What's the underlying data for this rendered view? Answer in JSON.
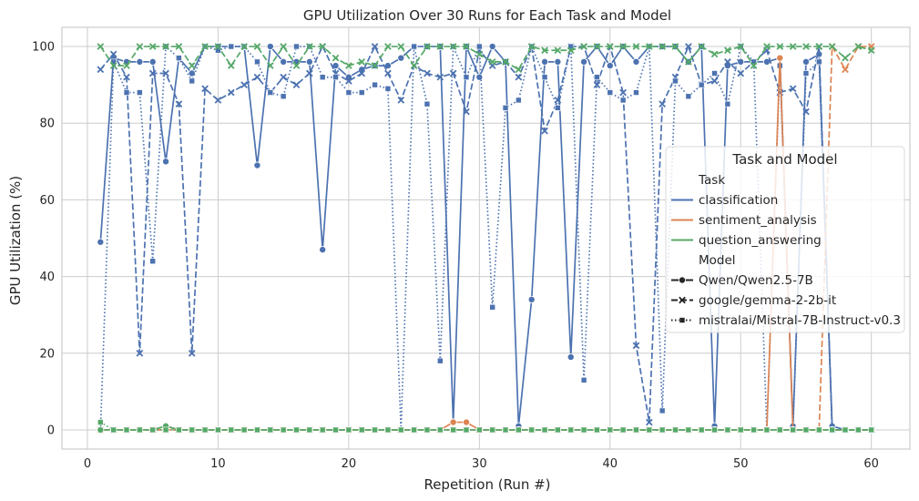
{
  "chart_data": {
    "type": "line",
    "title": "GPU Utilization Over 30 Runs for Each Task and Model",
    "xlabel": "Repetition (Run #)",
    "ylabel": "GPU Utilization (%)",
    "xlim": [
      -1.95,
      62.95
    ],
    "ylim": [
      -5,
      105
    ],
    "x_ticks": [
      0,
      10,
      20,
      30,
      40,
      50,
      60
    ],
    "y_ticks": [
      0,
      20,
      40,
      60,
      80,
      100
    ],
    "grid": true,
    "legend": {
      "title": "Task and Model",
      "placement": "center-right",
      "task_header": "Task",
      "model_header": "Model",
      "tasks": [
        {
          "name": "classification",
          "color": "#4c72b0"
        },
        {
          "name": "sentiment_analysis",
          "color": "#dd8452"
        },
        {
          "name": "question_answering",
          "color": "#55a868"
        }
      ],
      "models": [
        {
          "name": "Qwen/Qwen2.5-7B",
          "dash": "solid",
          "marker": "circle"
        },
        {
          "name": "google/gemma-2-2b-it",
          "dash": "dashed",
          "marker": "x"
        },
        {
          "name": "mistralai/Mistral-7B-Instruct-v0.3",
          "dash": "dotted",
          "marker": "square"
        }
      ]
    },
    "series": [
      {
        "task": "classification",
        "model": "Qwen/Qwen2.5-7B",
        "x": [
          1,
          2,
          3,
          4,
          5,
          6,
          7,
          8,
          9,
          10,
          11,
          12,
          13,
          14,
          15,
          16,
          17,
          18,
          19,
          20,
          21,
          22,
          23,
          24,
          25,
          26,
          27,
          28,
          29,
          30,
          31,
          32,
          33,
          34,
          35,
          36,
          37,
          38,
          39,
          40,
          41,
          42,
          43,
          44,
          45,
          46,
          47,
          48,
          49,
          50,
          51,
          52,
          53,
          54,
          55,
          56,
          57,
          58,
          59,
          60
        ],
        "y": [
          49,
          97,
          96,
          96,
          96,
          70,
          97,
          93,
          100,
          100,
          100,
          100,
          69,
          100,
          96,
          96,
          96,
          47,
          95,
          92,
          94,
          95,
          95,
          97,
          100,
          100,
          100,
          2,
          100,
          92,
          100,
          96,
          1,
          34,
          96,
          96,
          19,
          96,
          100,
          95,
          100,
          96,
          100,
          100,
          100,
          96,
          100,
          1,
          95,
          96,
          96,
          96,
          97,
          1,
          96,
          98,
          1,
          0,
          0,
          0
        ]
      },
      {
        "task": "classification",
        "model": "google/gemma-2-2b-it",
        "x": [
          1,
          2,
          3,
          4,
          5,
          6,
          7,
          8,
          9,
          10,
          11,
          12,
          13,
          14,
          15,
          16,
          17,
          18,
          19,
          20,
          21,
          22,
          23,
          24,
          25,
          26,
          27,
          28,
          29,
          30,
          31,
          32,
          33,
          34,
          35,
          36,
          37,
          38,
          39,
          40,
          41,
          42,
          43,
          44,
          45,
          46,
          47,
          48,
          49,
          50,
          51,
          52,
          53,
          54,
          55,
          56,
          57,
          58,
          59,
          60
        ],
        "y": [
          94,
          98,
          92,
          20,
          93,
          93,
          85,
          20,
          89,
          86,
          88,
          90,
          92,
          88,
          92,
          90,
          93,
          100,
          93,
          91,
          93,
          100,
          93,
          86,
          95,
          93,
          92,
          93,
          83,
          99,
          95,
          96,
          92,
          100,
          78,
          86,
          100,
          100,
          90,
          100,
          88,
          22,
          2,
          85,
          92,
          100,
          90,
          91,
          96,
          93,
          96,
          99,
          88,
          89,
          83,
          100,
          0,
          0,
          0,
          0
        ]
      },
      {
        "task": "classification",
        "model": "mistralai/Mistral-7B-Instruct-v0.3",
        "x": [
          1,
          2,
          3,
          4,
          5,
          6,
          7,
          8,
          9,
          10,
          11,
          12,
          13,
          14,
          15,
          16,
          17,
          18,
          19,
          20,
          21,
          22,
          23,
          24,
          25,
          26,
          27,
          28,
          29,
          30,
          31,
          32,
          33,
          34,
          35,
          36,
          37,
          38,
          39,
          40,
          41,
          42,
          43,
          44,
          45,
          46,
          47,
          48,
          49,
          50,
          51,
          52,
          53,
          54,
          55,
          56,
          57,
          58,
          59,
          60
        ],
        "y": [
          0,
          96,
          88,
          88,
          44,
          100,
          97,
          91,
          100,
          99,
          100,
          100,
          96,
          88,
          87,
          100,
          100,
          92,
          92,
          88,
          88,
          90,
          89,
          0,
          100,
          85,
          18,
          100,
          92,
          100,
          32,
          84,
          86,
          100,
          92,
          84,
          100,
          13,
          92,
          88,
          86,
          88,
          100,
          5,
          91,
          87,
          90,
          93,
          85,
          100,
          96,
          0,
          95,
          0,
          93,
          96,
          0,
          0,
          0,
          0
        ]
      },
      {
        "task": "sentiment_analysis",
        "model": "Qwen/Qwen2.5-7B",
        "x": [
          1,
          2,
          3,
          4,
          5,
          6,
          7,
          8,
          9,
          10,
          11,
          12,
          13,
          14,
          15,
          16,
          17,
          18,
          19,
          20,
          21,
          22,
          23,
          24,
          25,
          26,
          27,
          28,
          29,
          30,
          31,
          32,
          33,
          34,
          35,
          36,
          37,
          38,
          39,
          40,
          41,
          42,
          43,
          44,
          45,
          46,
          47,
          48,
          49,
          50,
          51,
          52,
          53,
          54,
          55,
          56,
          57,
          58,
          59,
          60
        ],
        "y": [
          0,
          0,
          0,
          0,
          0,
          1,
          0,
          0,
          0,
          0,
          0,
          0,
          0,
          0,
          0,
          0,
          0,
          0,
          0,
          0,
          0,
          0,
          0,
          0,
          0,
          0,
          0,
          2,
          2,
          0,
          0,
          0,
          0,
          0,
          0,
          0,
          0,
          0,
          0,
          0,
          0,
          0,
          0,
          0,
          0,
          0,
          0,
          0,
          0,
          0,
          0,
          0,
          97,
          0,
          0,
          0,
          0,
          0,
          0,
          0
        ]
      },
      {
        "task": "sentiment_analysis",
        "model": "google/gemma-2-2b-it",
        "x": [
          1,
          2,
          3,
          4,
          5,
          6,
          7,
          8,
          9,
          10,
          11,
          12,
          13,
          14,
          15,
          16,
          17,
          18,
          19,
          20,
          21,
          22,
          23,
          24,
          25,
          26,
          27,
          28,
          29,
          30,
          31,
          32,
          33,
          34,
          35,
          36,
          37,
          38,
          39,
          40,
          41,
          42,
          43,
          44,
          45,
          46,
          47,
          48,
          49,
          50,
          51,
          52,
          53,
          54,
          55,
          56,
          57,
          58,
          59,
          60
        ],
        "y": [
          0,
          0,
          0,
          0,
          0,
          0,
          0,
          0,
          0,
          0,
          0,
          0,
          0,
          0,
          0,
          0,
          0,
          0,
          0,
          0,
          0,
          0,
          0,
          0,
          0,
          0,
          0,
          0,
          0,
          0,
          0,
          0,
          0,
          0,
          0,
          0,
          0,
          0,
          0,
          0,
          0,
          0,
          0,
          0,
          0,
          0,
          0,
          0,
          0,
          0,
          0,
          0,
          0,
          0,
          0,
          0,
          100,
          94,
          100,
          100
        ]
      },
      {
        "task": "sentiment_analysis",
        "model": "mistralai/Mistral-7B-Instruct-v0.3",
        "x": [
          1,
          2,
          3,
          4,
          5,
          6,
          7,
          8,
          9,
          10,
          11,
          12,
          13,
          14,
          15,
          16,
          17,
          18,
          19,
          20,
          21,
          22,
          23,
          24,
          25,
          26,
          27,
          28,
          29,
          30,
          31,
          32,
          33,
          34,
          35,
          36,
          37,
          38,
          39,
          40,
          41,
          42,
          43,
          44,
          45,
          46,
          47,
          48,
          49,
          50,
          51,
          52,
          53,
          54,
          55,
          56,
          57,
          58,
          59,
          60
        ],
        "y": [
          0,
          0,
          0,
          0,
          0,
          0,
          0,
          0,
          0,
          0,
          0,
          0,
          0,
          0,
          0,
          0,
          0,
          0,
          0,
          0,
          0,
          0,
          0,
          0,
          0,
          0,
          0,
          0,
          0,
          0,
          0,
          0,
          0,
          0,
          0,
          0,
          0,
          0,
          0,
          0,
          0,
          0,
          0,
          0,
          0,
          0,
          0,
          0,
          0,
          0,
          0,
          0,
          0,
          0,
          0,
          0,
          0,
          0,
          0,
          0
        ]
      },
      {
        "task": "question_answering",
        "model": "Qwen/Qwen2.5-7B",
        "x": [
          1,
          2,
          3,
          4,
          5,
          6,
          7,
          8,
          9,
          10,
          11,
          12,
          13,
          14,
          15,
          16,
          17,
          18,
          19,
          20,
          21,
          22,
          23,
          24,
          25,
          26,
          27,
          28,
          29,
          30,
          31,
          32,
          33,
          34,
          35,
          36,
          37,
          38,
          39,
          40,
          41,
          42,
          43,
          44,
          45,
          46,
          47,
          48,
          49,
          50,
          51,
          52,
          53,
          54,
          55,
          56,
          57,
          58,
          59,
          60
        ],
        "y": [
          0,
          0,
          0,
          0,
          0,
          1,
          0,
          0,
          0,
          0,
          0,
          0,
          0,
          0,
          0,
          0,
          0,
          0,
          0,
          0,
          0,
          0,
          0,
          0,
          0,
          0,
          0,
          0,
          0,
          0,
          0,
          0,
          0,
          0,
          0,
          0,
          0,
          0,
          0,
          0,
          0,
          0,
          0,
          0,
          0,
          0,
          0,
          0,
          0,
          0,
          0,
          0,
          0,
          0,
          0,
          0,
          0,
          0,
          0,
          0
        ]
      },
      {
        "task": "question_answering",
        "model": "google/gemma-2-2b-it",
        "x": [
          1,
          2,
          3,
          4,
          5,
          6,
          7,
          8,
          9,
          10,
          11,
          12,
          13,
          14,
          15,
          16,
          17,
          18,
          19,
          20,
          21,
          22,
          23,
          24,
          25,
          26,
          27,
          28,
          29,
          30,
          31,
          32,
          33,
          34,
          35,
          36,
          37,
          38,
          39,
          40,
          41,
          42,
          43,
          44,
          45,
          46,
          47,
          48,
          49,
          50,
          51,
          52,
          53,
          54,
          55,
          56,
          57,
          58,
          59,
          60
        ],
        "y": [
          100,
          95,
          95,
          100,
          100,
          100,
          100,
          95,
          100,
          100,
          95,
          100,
          100,
          95,
          100,
          95,
          100,
          100,
          97,
          95,
          96,
          95,
          100,
          100,
          95,
          100,
          100,
          100,
          100,
          98,
          96,
          96,
          94,
          100,
          99,
          99,
          99,
          100,
          100,
          100,
          100,
          100,
          100,
          100,
          100,
          96,
          100,
          98,
          99,
          100,
          95,
          100,
          100,
          100,
          100,
          100,
          100,
          97,
          100,
          99
        ]
      },
      {
        "task": "question_answering",
        "model": "mistralai/Mistral-7B-Instruct-v0.3",
        "x": [
          1,
          2,
          3,
          4,
          5,
          6,
          7,
          8,
          9,
          10,
          11,
          12,
          13,
          14,
          15,
          16,
          17,
          18,
          19,
          20,
          21,
          22,
          23,
          24,
          25,
          26,
          27,
          28,
          29,
          30,
          31,
          32,
          33,
          34,
          35,
          36,
          37,
          38,
          39,
          40,
          41,
          42,
          43,
          44,
          45,
          46,
          47,
          48,
          49,
          50,
          51,
          52,
          53,
          54,
          55,
          56,
          57,
          58,
          59,
          60
        ],
        "y": [
          2,
          0,
          0,
          0,
          0,
          0,
          0,
          0,
          0,
          0,
          0,
          0,
          0,
          0,
          0,
          0,
          0,
          0,
          0,
          0,
          0,
          0,
          0,
          0,
          0,
          0,
          0,
          0,
          0,
          0,
          0,
          0,
          0,
          0,
          0,
          0,
          0,
          0,
          0,
          0,
          0,
          0,
          0,
          0,
          0,
          0,
          0,
          0,
          0,
          0,
          0,
          0,
          0,
          0,
          0,
          0,
          0,
          0,
          0,
          0
        ]
      }
    ]
  }
}
